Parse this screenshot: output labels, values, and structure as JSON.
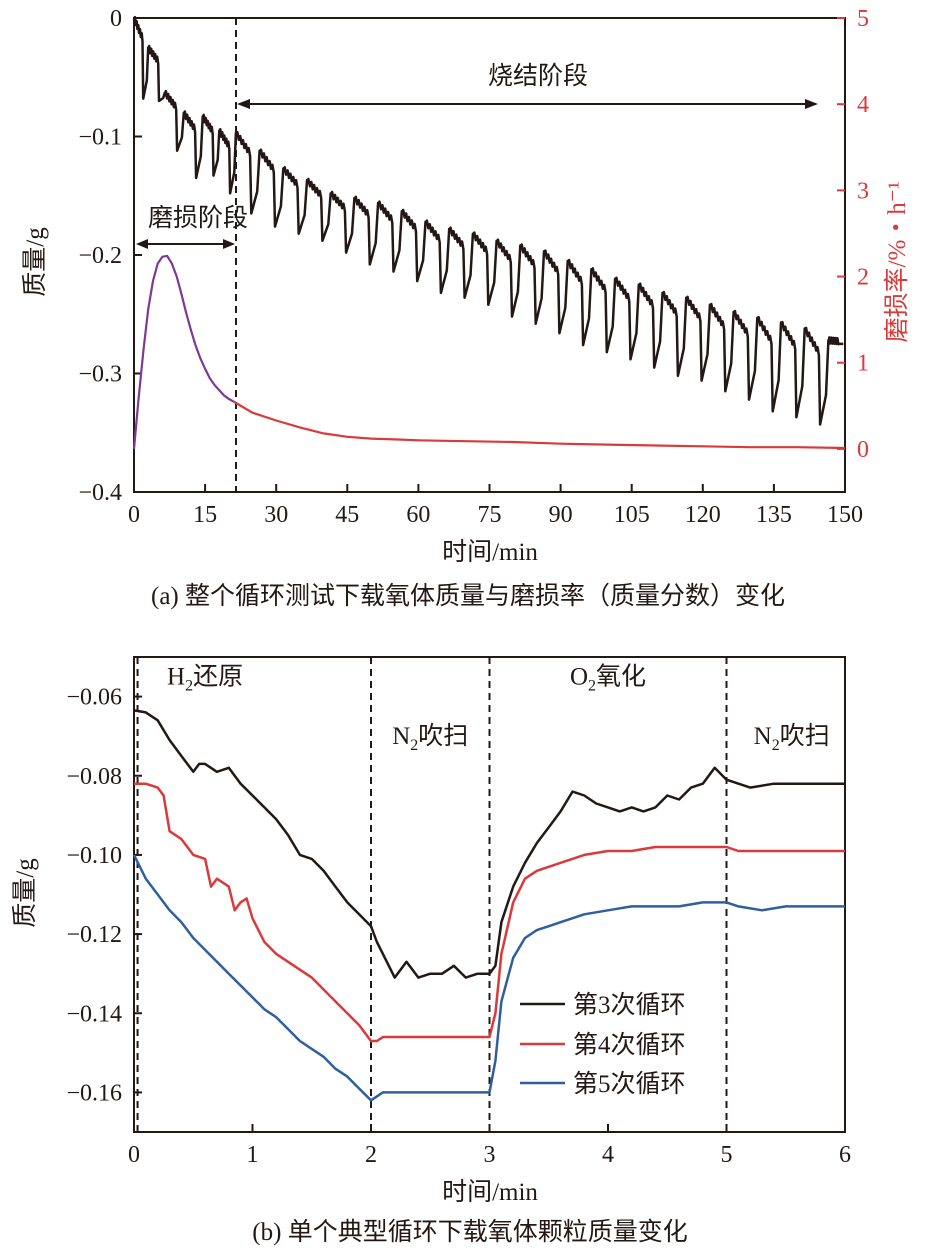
{
  "chart_data": [
    {
      "id": "a",
      "type": "line",
      "caption": "(a) 整个循环测试下载氧体质量与磨损率（质量分数）变化",
      "xlabel": "时间/min",
      "ylabel": "质量/g",
      "y2label": "磨损率/%・h⁻¹",
      "xlim": [
        0,
        150
      ],
      "ylim": [
        -0.4,
        0
      ],
      "y2lim": [
        -0.5,
        5
      ],
      "x_ticks": [
        0,
        15,
        30,
        45,
        60,
        75,
        90,
        105,
        120,
        135,
        150
      ],
      "x_tick_labels": [
        "0",
        "15",
        "30",
        "45",
        "60",
        "75",
        "90",
        "105",
        "120",
        "135",
        "150"
      ],
      "y_ticks": [
        0,
        -0.1,
        -0.2,
        -0.3,
        -0.4
      ],
      "y_tick_labels": [
        "0",
        "−0.1",
        "−0.2",
        "−0.3",
        "−0.4"
      ],
      "y2_ticks": [
        0,
        1,
        2,
        3,
        4,
        5
      ],
      "y2_tick_labels": [
        "0",
        "1",
        "2",
        "3",
        "4",
        "5"
      ],
      "grid": false,
      "divider_x": 21,
      "annotations": {
        "stage_attrition": "磨损阶段",
        "stage_sintering": "烧结阶段"
      },
      "series": [
        {
          "axis": "left",
          "color": "#231815",
          "cycles": [
            {
              "start": 0,
              "top": 0.0,
              "bottom": -0.068
            },
            {
              "start": 3,
              "top": -0.025,
              "bottom": -0.07
            },
            {
              "start": 6.5,
              "top": -0.063,
              "bottom": -0.112
            },
            {
              "start": 10.5,
              "top": -0.08,
              "bottom": -0.135
            },
            {
              "start": 14.5,
              "top": -0.083,
              "bottom": -0.133
            },
            {
              "start": 18,
              "top": -0.095,
              "bottom": -0.148
            },
            {
              "start": 21.5,
              "top": -0.097,
              "bottom": -0.165
            },
            {
              "start": 26.5,
              "top": -0.112,
              "bottom": -0.176
            },
            {
              "start": 31.5,
              "top": -0.127,
              "bottom": -0.182
            },
            {
              "start": 36.5,
              "top": -0.137,
              "bottom": -0.188
            },
            {
              "start": 41.5,
              "top": -0.148,
              "bottom": -0.198
            },
            {
              "start": 46.5,
              "top": -0.152,
              "bottom": -0.208
            },
            {
              "start": 51.5,
              "top": -0.156,
              "bottom": -0.214
            },
            {
              "start": 56.5,
              "top": -0.163,
              "bottom": -0.222
            },
            {
              "start": 61.5,
              "top": -0.172,
              "bottom": -0.232
            },
            {
              "start": 66.5,
              "top": -0.178,
              "bottom": -0.236
            },
            {
              "start": 71.5,
              "top": -0.182,
              "bottom": -0.242
            },
            {
              "start": 76.5,
              "top": -0.188,
              "bottom": -0.252
            },
            {
              "start": 81.5,
              "top": -0.192,
              "bottom": -0.258
            },
            {
              "start": 86.5,
              "top": -0.197,
              "bottom": -0.266
            },
            {
              "start": 91.5,
              "top": -0.205,
              "bottom": -0.276
            },
            {
              "start": 96.5,
              "top": -0.212,
              "bottom": -0.282
            },
            {
              "start": 101.5,
              "top": -0.22,
              "bottom": -0.288
            },
            {
              "start": 106.5,
              "top": -0.225,
              "bottom": -0.295
            },
            {
              "start": 111.5,
              "top": -0.232,
              "bottom": -0.302
            },
            {
              "start": 116.5,
              "top": -0.236,
              "bottom": -0.306
            },
            {
              "start": 121.5,
              "top": -0.242,
              "bottom": -0.315
            },
            {
              "start": 126.5,
              "top": -0.248,
              "bottom": -0.322
            },
            {
              "start": 131.5,
              "top": -0.253,
              "bottom": -0.332
            },
            {
              "start": 136.5,
              "top": -0.257,
              "bottom": -0.337
            },
            {
              "start": 141.5,
              "top": -0.262,
              "bottom": -0.343
            },
            {
              "start": 146.5,
              "top": -0.272,
              "bottom": -0.275
            }
          ]
        },
        {
          "axis": "right",
          "color": "#7b3a96",
          "x": [
            0,
            1,
            2,
            3,
            4,
            5,
            6,
            7,
            8,
            9,
            10,
            11,
            12,
            13,
            14,
            15,
            16,
            17,
            18,
            19,
            20,
            21
          ],
          "y": [
            0.0,
            0.6,
            1.15,
            1.62,
            1.95,
            2.15,
            2.23,
            2.24,
            2.15,
            2.0,
            1.8,
            1.58,
            1.38,
            1.2,
            1.05,
            0.93,
            0.82,
            0.74,
            0.68,
            0.62,
            0.58,
            0.55
          ]
        },
        {
          "axis": "right",
          "color": "#d93a3a",
          "x": [
            21,
            25,
            30,
            35,
            40,
            45,
            50,
            55,
            60,
            70,
            80,
            90,
            100,
            110,
            120,
            130,
            140,
            150
          ],
          "y": [
            0.55,
            0.42,
            0.33,
            0.25,
            0.18,
            0.14,
            0.12,
            0.11,
            0.1,
            0.09,
            0.08,
            0.06,
            0.05,
            0.04,
            0.03,
            0.02,
            0.02,
            0.01
          ]
        }
      ]
    },
    {
      "id": "b",
      "type": "line",
      "caption": "(b) 单个典型循环下载氧体颗粒质量变化",
      "xlabel": "时间/min",
      "ylabel": "质量/g",
      "xlim": [
        0,
        6
      ],
      "ylim": [
        -0.17,
        -0.05
      ],
      "x_ticks": [
        0,
        1,
        2,
        3,
        4,
        5,
        6
      ],
      "x_tick_labels": [
        "0",
        "1",
        "2",
        "3",
        "4",
        "5",
        "6"
      ],
      "y_ticks": [
        -0.06,
        -0.08,
        -0.1,
        -0.12,
        -0.14,
        -0.16
      ],
      "y_tick_labels": [
        "−0.06",
        "−0.08",
        "−0.10",
        "−0.12",
        "−0.14",
        "−0.16"
      ],
      "grid": false,
      "dividers_x": [
        0.03,
        2,
        3,
        5
      ],
      "phase_labels": [
        {
          "base": "H",
          "sub": "2",
          "rest": "还原",
          "x": 0.6,
          "y": -0.057
        },
        {
          "base": "N",
          "sub": "2",
          "rest": "吹扫",
          "x": 2.5,
          "y": -0.072
        },
        {
          "base": "O",
          "sub": "2",
          "rest": "氧化",
          "x": 4.0,
          "y": -0.057
        },
        {
          "base": "N",
          "sub": "2",
          "rest": "吹扫",
          "x": 5.55,
          "y": -0.072
        }
      ],
      "legend_position": "lower-right",
      "series": [
        {
          "name": "第3次循环",
          "color": "#231815",
          "x": [
            0,
            0.1,
            0.2,
            0.3,
            0.4,
            0.5,
            0.55,
            0.6,
            0.7,
            0.8,
            0.9,
            1.0,
            1.1,
            1.2,
            1.3,
            1.4,
            1.5,
            1.6,
            1.7,
            1.8,
            1.9,
            2.0,
            2.05,
            2.1,
            2.2,
            2.3,
            2.4,
            2.5,
            2.6,
            2.7,
            2.8,
            2.9,
            3.0,
            3.05,
            3.1,
            3.2,
            3.3,
            3.4,
            3.5,
            3.6,
            3.7,
            3.8,
            3.9,
            4.0,
            4.1,
            4.2,
            4.3,
            4.4,
            4.5,
            4.6,
            4.7,
            4.8,
            4.9,
            5.0,
            5.2,
            5.4,
            5.6,
            5.8,
            6.0
          ],
          "y": [
            -0.0635,
            -0.064,
            -0.066,
            -0.071,
            -0.075,
            -0.079,
            -0.077,
            -0.077,
            -0.079,
            -0.078,
            -0.082,
            -0.085,
            -0.088,
            -0.091,
            -0.095,
            -0.1,
            -0.101,
            -0.104,
            -0.108,
            -0.112,
            -0.115,
            -0.118,
            -0.122,
            -0.125,
            -0.131,
            -0.127,
            -0.131,
            -0.13,
            -0.13,
            -0.128,
            -0.131,
            -0.13,
            -0.13,
            -0.128,
            -0.117,
            -0.108,
            -0.102,
            -0.097,
            -0.093,
            -0.089,
            -0.084,
            -0.085,
            -0.087,
            -0.088,
            -0.089,
            -0.088,
            -0.089,
            -0.088,
            -0.085,
            -0.086,
            -0.083,
            -0.082,
            -0.078,
            -0.081,
            -0.083,
            -0.082,
            -0.082,
            -0.082,
            -0.082
          ]
        },
        {
          "name": "第4次循环",
          "color": "#d93a3a",
          "x": [
            0,
            0.1,
            0.2,
            0.25,
            0.3,
            0.4,
            0.5,
            0.6,
            0.65,
            0.7,
            0.8,
            0.85,
            0.9,
            0.95,
            1.0,
            1.1,
            1.2,
            1.3,
            1.4,
            1.5,
            1.6,
            1.7,
            1.8,
            1.9,
            2.0,
            2.05,
            2.1,
            2.3,
            2.5,
            2.7,
            2.9,
            3.0,
            3.05,
            3.1,
            3.2,
            3.3,
            3.4,
            3.5,
            3.6,
            3.8,
            4.0,
            4.2,
            4.4,
            4.6,
            4.8,
            5.0,
            5.1,
            5.3,
            5.5,
            5.8,
            6.0
          ],
          "y": [
            -0.082,
            -0.082,
            -0.083,
            -0.085,
            -0.094,
            -0.096,
            -0.1,
            -0.101,
            -0.108,
            -0.106,
            -0.108,
            -0.114,
            -0.112,
            -0.111,
            -0.116,
            -0.122,
            -0.125,
            -0.127,
            -0.129,
            -0.131,
            -0.134,
            -0.137,
            -0.14,
            -0.143,
            -0.147,
            -0.147,
            -0.146,
            -0.146,
            -0.146,
            -0.146,
            -0.146,
            -0.146,
            -0.14,
            -0.125,
            -0.112,
            -0.106,
            -0.104,
            -0.103,
            -0.102,
            -0.1,
            -0.099,
            -0.099,
            -0.098,
            -0.098,
            -0.098,
            -0.098,
            -0.099,
            -0.099,
            -0.099,
            -0.099,
            -0.099
          ]
        },
        {
          "name": "第5次循环",
          "color": "#2f5f9e",
          "x": [
            0,
            0.1,
            0.2,
            0.3,
            0.4,
            0.5,
            0.6,
            0.7,
            0.8,
            0.9,
            1.0,
            1.1,
            1.2,
            1.3,
            1.4,
            1.5,
            1.6,
            1.7,
            1.8,
            1.9,
            2.0,
            2.05,
            2.1,
            2.3,
            2.5,
            2.7,
            2.9,
            3.0,
            3.05,
            3.1,
            3.2,
            3.3,
            3.4,
            3.5,
            3.6,
            3.8,
            4.0,
            4.2,
            4.4,
            4.6,
            4.8,
            5.0,
            5.1,
            5.3,
            5.5,
            5.8,
            6.0
          ],
          "y": [
            -0.1,
            -0.106,
            -0.11,
            -0.114,
            -0.117,
            -0.121,
            -0.124,
            -0.127,
            -0.13,
            -0.133,
            -0.136,
            -0.139,
            -0.141,
            -0.144,
            -0.147,
            -0.149,
            -0.151,
            -0.154,
            -0.156,
            -0.159,
            -0.162,
            -0.161,
            -0.16,
            -0.16,
            -0.16,
            -0.16,
            -0.16,
            -0.16,
            -0.152,
            -0.137,
            -0.126,
            -0.121,
            -0.119,
            -0.118,
            -0.117,
            -0.115,
            -0.114,
            -0.113,
            -0.113,
            -0.113,
            -0.112,
            -0.112,
            -0.113,
            -0.114,
            -0.113,
            -0.113,
            -0.113
          ]
        }
      ]
    }
  ]
}
